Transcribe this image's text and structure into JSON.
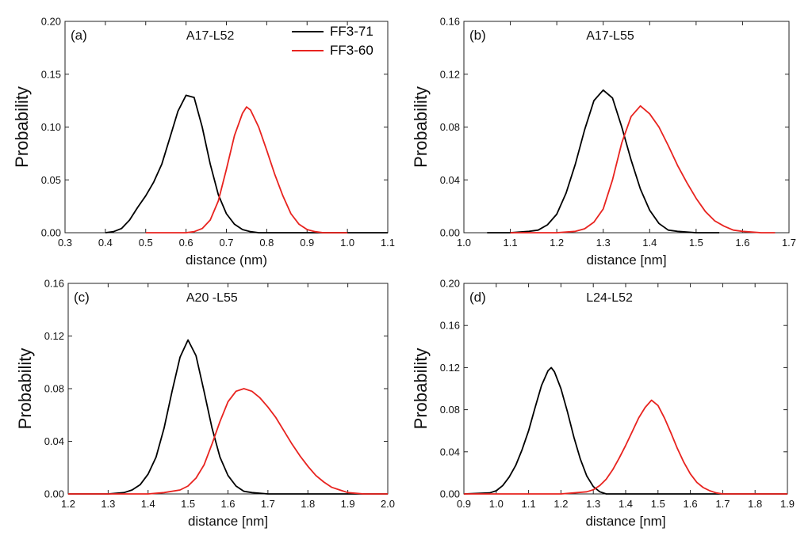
{
  "figure": {
    "legend": {
      "entries": [
        {
          "name": "FF3-71",
          "color": "#000000"
        },
        {
          "name": "FF3-60",
          "color": "#e8231f"
        }
      ]
    }
  },
  "chart_data": [
    {
      "type": "line",
      "panel_label": "(a)",
      "title": "A17-L52",
      "xlabel": "distance (nm)",
      "ylabel": "Probability",
      "xlim": [
        0.3,
        1.1
      ],
      "ylim": [
        0,
        0.2
      ],
      "xticks": [
        "0.3",
        "0.4",
        "0.5",
        "0.6",
        "0.7",
        "0.8",
        "0.9",
        "1.0",
        "1.1"
      ],
      "yticks": [
        "0.00",
        "0.05",
        "0.10",
        "0.15",
        "0.20"
      ],
      "series": [
        {
          "name": "FF3-71",
          "color": "#000000",
          "x": [
            0.4,
            0.42,
            0.44,
            0.46,
            0.48,
            0.5,
            0.52,
            0.54,
            0.56,
            0.58,
            0.6,
            0.62,
            0.64,
            0.66,
            0.68,
            0.7,
            0.72,
            0.74,
            0.76,
            0.78,
            0.8,
            0.82,
            0.84,
            0.9,
            1.1
          ],
          "y": [
            0.0,
            0.001,
            0.004,
            0.012,
            0.024,
            0.035,
            0.048,
            0.065,
            0.09,
            0.115,
            0.13,
            0.128,
            0.1,
            0.065,
            0.036,
            0.018,
            0.008,
            0.003,
            0.001,
            0.0,
            0.0,
            0.0,
            0.0,
            0.0,
            0.0
          ]
        },
        {
          "name": "FF3-60",
          "color": "#e8231f",
          "x": [
            0.5,
            0.6,
            0.62,
            0.64,
            0.66,
            0.68,
            0.7,
            0.72,
            0.74,
            0.75,
            0.76,
            0.78,
            0.8,
            0.82,
            0.84,
            0.86,
            0.88,
            0.9,
            0.92,
            0.94,
            1.0
          ],
          "y": [
            0.0,
            0.0,
            0.001,
            0.004,
            0.012,
            0.03,
            0.06,
            0.092,
            0.113,
            0.119,
            0.116,
            0.1,
            0.078,
            0.055,
            0.035,
            0.018,
            0.008,
            0.003,
            0.001,
            0.0,
            0.0
          ]
        }
      ]
    },
    {
      "type": "line",
      "panel_label": "(b)",
      "title": "A17-L55",
      "xlabel": "distance [nm]",
      "ylabel": "Probability",
      "xlim": [
        1.0,
        1.7
      ],
      "ylim": [
        0,
        0.16
      ],
      "xticks": [
        "1.0",
        "1.1",
        "1.2",
        "1.3",
        "1.4",
        "1.5",
        "1.6",
        "1.7"
      ],
      "yticks": [
        "0.00",
        "0.04",
        "0.08",
        "0.12",
        "0.16"
      ],
      "series": [
        {
          "name": "FF3-71",
          "color": "#000000",
          "x": [
            1.05,
            1.1,
            1.14,
            1.16,
            1.18,
            1.2,
            1.22,
            1.24,
            1.26,
            1.28,
            1.3,
            1.32,
            1.34,
            1.36,
            1.38,
            1.4,
            1.42,
            1.44,
            1.46,
            1.5,
            1.55
          ],
          "y": [
            0.0,
            0.0,
            0.001,
            0.002,
            0.006,
            0.014,
            0.03,
            0.052,
            0.078,
            0.1,
            0.108,
            0.102,
            0.08,
            0.055,
            0.033,
            0.017,
            0.007,
            0.002,
            0.001,
            0.0,
            0.0
          ]
        },
        {
          "name": "FF3-60",
          "color": "#e8231f",
          "x": [
            1.1,
            1.2,
            1.24,
            1.26,
            1.28,
            1.3,
            1.32,
            1.34,
            1.36,
            1.38,
            1.4,
            1.42,
            1.44,
            1.46,
            1.48,
            1.5,
            1.52,
            1.54,
            1.56,
            1.58,
            1.6,
            1.64,
            1.67
          ],
          "y": [
            0.0,
            0.0,
            0.001,
            0.003,
            0.008,
            0.018,
            0.04,
            0.068,
            0.088,
            0.096,
            0.09,
            0.08,
            0.066,
            0.051,
            0.038,
            0.026,
            0.016,
            0.009,
            0.005,
            0.002,
            0.001,
            0.0,
            0.0
          ]
        }
      ]
    },
    {
      "type": "line",
      "panel_label": "(c)",
      "title": "A20 -L55",
      "xlabel": "distance [nm]",
      "ylabel": "Probability",
      "xlim": [
        1.2,
        2.0
      ],
      "ylim": [
        0,
        0.16
      ],
      "xticks": [
        "1.2",
        "1.3",
        "1.4",
        "1.5",
        "1.6",
        "1.7",
        "1.8",
        "1.9",
        "2.0"
      ],
      "yticks": [
        "0.00",
        "0.04",
        "0.08",
        "0.12",
        "0.16"
      ],
      "series": [
        {
          "name": "FF3-71",
          "color": "#000000",
          "x": [
            1.2,
            1.3,
            1.34,
            1.36,
            1.38,
            1.4,
            1.42,
            1.44,
            1.46,
            1.48,
            1.5,
            1.52,
            1.54,
            1.56,
            1.58,
            1.6,
            1.62,
            1.64,
            1.66,
            1.7,
            1.8,
            2.0
          ],
          "y": [
            0.0,
            0.0,
            0.001,
            0.003,
            0.007,
            0.015,
            0.028,
            0.05,
            0.078,
            0.104,
            0.117,
            0.105,
            0.078,
            0.05,
            0.028,
            0.014,
            0.006,
            0.002,
            0.001,
            0.0,
            0.0,
            0.0
          ]
        },
        {
          "name": "FF3-60",
          "color": "#e8231f",
          "x": [
            1.2,
            1.4,
            1.44,
            1.48,
            1.5,
            1.52,
            1.54,
            1.56,
            1.58,
            1.6,
            1.62,
            1.64,
            1.66,
            1.68,
            1.7,
            1.72,
            1.74,
            1.76,
            1.78,
            1.8,
            1.82,
            1.84,
            1.86,
            1.88,
            1.9,
            1.94,
            2.0
          ],
          "y": [
            0.0,
            0.0,
            0.001,
            0.003,
            0.006,
            0.012,
            0.022,
            0.038,
            0.055,
            0.07,
            0.078,
            0.08,
            0.078,
            0.073,
            0.066,
            0.058,
            0.048,
            0.038,
            0.029,
            0.021,
            0.014,
            0.009,
            0.005,
            0.003,
            0.001,
            0.0,
            0.0
          ]
        }
      ]
    },
    {
      "type": "line",
      "panel_label": "(d)",
      "title": "L24-L52",
      "xlabel": "distance [nm]",
      "ylabel": "Probability",
      "xlim": [
        0.9,
        1.9
      ],
      "ylim": [
        0,
        0.2
      ],
      "xticks": [
        "0.9",
        "1.0",
        "1.1",
        "1.2",
        "1.3",
        "1.4",
        "1.5",
        "1.6",
        "1.7",
        "1.8",
        "1.9"
      ],
      "yticks": [
        "0.00",
        "0.04",
        "0.08",
        "0.12",
        "0.16",
        "0.20"
      ],
      "series": [
        {
          "name": "FF3-71",
          "color": "#000000",
          "x": [
            0.9,
            0.98,
            1.0,
            1.02,
            1.04,
            1.06,
            1.08,
            1.1,
            1.12,
            1.14,
            1.16,
            1.17,
            1.18,
            1.2,
            1.22,
            1.24,
            1.26,
            1.28,
            1.3,
            1.32,
            1.34,
            1.4,
            1.9
          ],
          "y": [
            0.0,
            0.001,
            0.003,
            0.008,
            0.016,
            0.027,
            0.042,
            0.06,
            0.082,
            0.103,
            0.117,
            0.12,
            0.116,
            0.1,
            0.078,
            0.054,
            0.033,
            0.017,
            0.007,
            0.002,
            0.0,
            0.0,
            0.0
          ]
        },
        {
          "name": "FF3-60",
          "color": "#e8231f",
          "x": [
            0.9,
            1.2,
            1.24,
            1.28,
            1.3,
            1.32,
            1.34,
            1.36,
            1.38,
            1.4,
            1.42,
            1.44,
            1.46,
            1.48,
            1.5,
            1.52,
            1.54,
            1.56,
            1.58,
            1.6,
            1.62,
            1.64,
            1.66,
            1.68,
            1.7,
            1.74,
            1.9
          ],
          "y": [
            0.0,
            0.0,
            0.001,
            0.002,
            0.004,
            0.008,
            0.014,
            0.023,
            0.034,
            0.046,
            0.059,
            0.072,
            0.082,
            0.089,
            0.084,
            0.072,
            0.058,
            0.043,
            0.03,
            0.019,
            0.011,
            0.006,
            0.003,
            0.001,
            0.0,
            0.0,
            0.0
          ]
        }
      ]
    }
  ]
}
